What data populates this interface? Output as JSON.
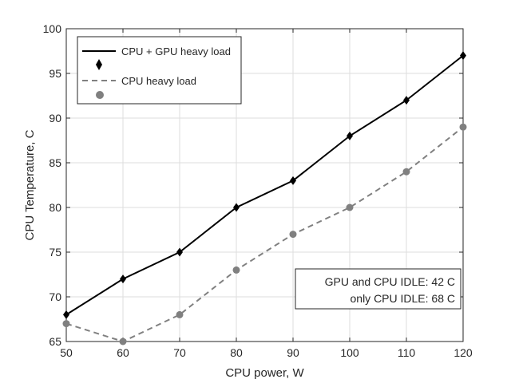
{
  "chart_data": {
    "type": "line",
    "title": "",
    "xlabel": "CPU power, W",
    "ylabel": "CPU Temperature, C",
    "xlim": [
      50,
      120
    ],
    "ylim": [
      65,
      100
    ],
    "x_ticks": [
      50,
      60,
      70,
      80,
      90,
      100,
      110,
      120
    ],
    "y_ticks": [
      65,
      70,
      75,
      80,
      85,
      90,
      95,
      100
    ],
    "grid": true,
    "legend_position": "top-left",
    "x": [
      50,
      60,
      70,
      80,
      90,
      100,
      110,
      120
    ],
    "series": [
      {
        "name": "CPU + GPU heavy load",
        "values": [
          68,
          72,
          75,
          80,
          83,
          88,
          92,
          97
        ],
        "line_style": "solid",
        "marker": "diamond",
        "color": "#000000"
      },
      {
        "name": "CPU heavy load",
        "values": [
          67,
          65,
          68,
          73,
          77,
          80,
          84,
          89
        ],
        "line_style": "dashed",
        "marker": "circle",
        "color": "#808080"
      }
    ],
    "annotations": [
      "GPU and CPU IDLE: 42 C",
      "only  CPU IDLE: 68 C"
    ]
  }
}
